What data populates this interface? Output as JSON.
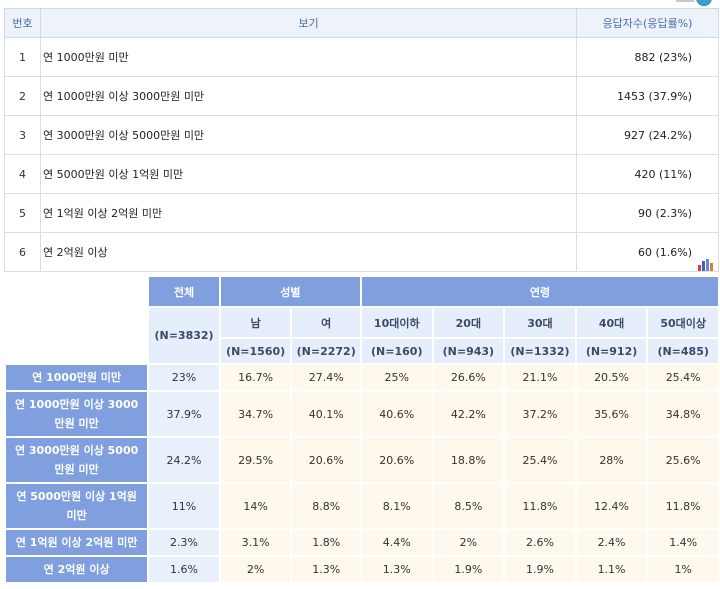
{
  "results": {
    "headers": {
      "no": "번호",
      "option": "보기",
      "count": "응답자수(응답률%)"
    },
    "rows": [
      {
        "no": "1",
        "label": "연 1000만원 미만",
        "value": "882 (23%)"
      },
      {
        "no": "2",
        "label": "연 1000만원 이상 3000만원 미만",
        "value": "1453 (37.9%)"
      },
      {
        "no": "3",
        "label": "연 3000만원 이상 5000만원 미만",
        "value": "927 (24.2%)"
      },
      {
        "no": "4",
        "label": "연 5000만원 이상 1억원 미만",
        "value": "420 (11%)"
      },
      {
        "no": "5",
        "label": "연 1억원 이상 2억원 미만",
        "value": "90 (2.3%)"
      },
      {
        "no": "6",
        "label": "연 2억원 이상",
        "value": "60 (1.6%)"
      }
    ]
  },
  "crosstab": {
    "total": {
      "label": "전체",
      "n": "(N=3832)"
    },
    "gender": {
      "label": "성별",
      "cols": [
        {
          "label": "남",
          "n": "(N=1560)"
        },
        {
          "label": "여",
          "n": "(N=2272)"
        }
      ]
    },
    "age": {
      "label": "연령",
      "cols": [
        {
          "label": "10대이하",
          "n": "(N=160)"
        },
        {
          "label": "20대",
          "n": "(N=943)"
        },
        {
          "label": "30대",
          "n": "(N=1332)"
        },
        {
          "label": "40대",
          "n": "(N=912)"
        },
        {
          "label": "50대이상",
          "n": "(N=485)"
        }
      ]
    },
    "rows": [
      {
        "label": "연 1000만원 미만",
        "cells": [
          "23%",
          "16.7%",
          "27.4%",
          "25%",
          "26.6%",
          "21.1%",
          "20.5%",
          "25.4%"
        ]
      },
      {
        "label": "연 1000만원 이상 3000만원 미만",
        "cells": [
          "37.9%",
          "34.7%",
          "40.1%",
          "40.6%",
          "42.2%",
          "37.2%",
          "35.6%",
          "34.8%"
        ]
      },
      {
        "label": "연 3000만원 이상 5000만원 미만",
        "cells": [
          "24.2%",
          "29.5%",
          "20.6%",
          "20.6%",
          "18.8%",
          "25.4%",
          "28%",
          "25.6%"
        ]
      },
      {
        "label": "연 5000만원 이상 1억원 미만",
        "cells": [
          "11%",
          "14%",
          "8.8%",
          "8.1%",
          "8.5%",
          "11.8%",
          "12.4%",
          "11.8%"
        ]
      },
      {
        "label": "연 1억원 이상 2억원 미만",
        "cells": [
          "2.3%",
          "3.1%",
          "1.8%",
          "4.4%",
          "2%",
          "2.6%",
          "2.4%",
          "1.4%"
        ]
      },
      {
        "label": "연 2억원 이상",
        "cells": [
          "1.6%",
          "2%",
          "1.3%",
          "1.3%",
          "1.9%",
          "1.9%",
          "1.1%",
          "1%"
        ]
      }
    ]
  },
  "colors": {
    "header_blue": "#7f9fdf",
    "sub_header": "#e7eefb",
    "cell_bg": "#fff9ed",
    "total_bg": "#e8f1fb",
    "top_header_text": "#4a6ea9"
  },
  "icons": {
    "chart": "bar-chart-icon",
    "badge": "help-badge-icon"
  }
}
